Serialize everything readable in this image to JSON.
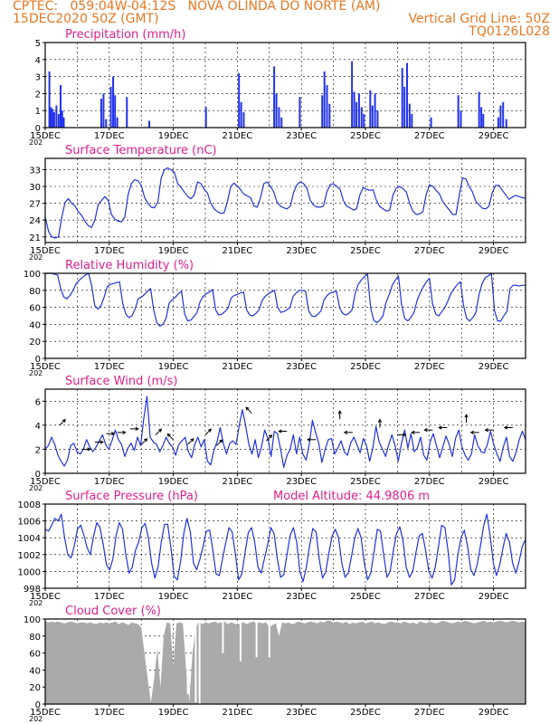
{
  "header": {
    "left_line1": "CPTEC:   059:04W-04:12S   NOVA OLINDA DO NORTE (AM)",
    "left_line2": "15DEC2020 50Z (GMT)",
    "right_line2": "Vertical Grid Line: 50Z",
    "right_line3": "TQ0126L028"
  },
  "colors": {
    "header": "#e87722",
    "title": "#e0208a",
    "series": "#2233dd",
    "bars": "#2233ee",
    "cloud": "#aaaaaa",
    "frame": "#000000"
  },
  "x_axis": {
    "ticks": [
      "15DEC",
      "17DEC",
      "19DEC",
      "21DEC",
      "23DEC",
      "25DEC",
      "27DEC",
      "29DEC"
    ],
    "year_fragment": "202"
  },
  "chart_data": [
    {
      "type": "bar",
      "title": "Precipitation (mm/h)",
      "ylim": [
        0,
        5
      ],
      "yticks": [
        0,
        1,
        2,
        3,
        4,
        5
      ],
      "x_days_start": 0,
      "x_days_end": 15,
      "bars": [
        [
          0.13,
          3.3
        ],
        [
          0.18,
          1.2
        ],
        [
          0.23,
          1.1
        ],
        [
          0.28,
          0.9
        ],
        [
          0.35,
          1.3
        ],
        [
          0.42,
          0.8
        ],
        [
          0.48,
          2.5
        ],
        [
          0.53,
          1.0
        ],
        [
          0.58,
          0.6
        ],
        [
          1.75,
          1.7
        ],
        [
          1.82,
          2.0
        ],
        [
          1.9,
          0.5
        ],
        [
          2.05,
          2.4
        ],
        [
          2.12,
          3.0
        ],
        [
          2.18,
          1.9
        ],
        [
          2.25,
          0.6
        ],
        [
          2.55,
          1.8
        ],
        [
          3.25,
          0.4
        ],
        [
          5.02,
          1.2
        ],
        [
          6.05,
          3.2
        ],
        [
          6.12,
          1.5
        ],
        [
          6.2,
          0.9
        ],
        [
          7.15,
          3.6
        ],
        [
          7.22,
          2.0
        ],
        [
          7.3,
          1.2
        ],
        [
          7.38,
          0.6
        ],
        [
          7.95,
          1.8
        ],
        [
          8.65,
          1.9
        ],
        [
          8.72,
          3.3
        ],
        [
          8.8,
          2.5
        ],
        [
          8.88,
          1.4
        ],
        [
          9.58,
          3.9
        ],
        [
          9.65,
          2.1
        ],
        [
          9.72,
          1.5
        ],
        [
          9.8,
          2.0
        ],
        [
          9.88,
          1.2
        ],
        [
          9.95,
          0.8
        ],
        [
          10.15,
          2.2
        ],
        [
          10.22,
          1.3
        ],
        [
          10.3,
          2.0
        ],
        [
          10.38,
          1.0
        ],
        [
          11.15,
          3.5
        ],
        [
          11.22,
          2.4
        ],
        [
          11.3,
          3.8
        ],
        [
          11.38,
          1.4
        ],
        [
          11.45,
          0.8
        ],
        [
          12.05,
          0.6
        ],
        [
          12.9,
          1.9
        ],
        [
          12.98,
          1.0
        ],
        [
          13.55,
          2.1
        ],
        [
          13.62,
          1.2
        ],
        [
          13.68,
          0.8
        ],
        [
          14.15,
          0.6
        ],
        [
          14.22,
          1.3
        ],
        [
          14.3,
          1.5
        ],
        [
          14.4,
          0.5
        ]
      ]
    },
    {
      "type": "line",
      "title": "Surface Temperature (nC)",
      "ylim": [
        20,
        35
      ],
      "yticks": [
        21,
        24,
        27,
        30,
        33
      ],
      "y": [
        24.5,
        22.0,
        21.0,
        20.8,
        21.0,
        24.5,
        27.2,
        27.8,
        27.0,
        26.5,
        25.5,
        24.8,
        23.8,
        23.0,
        22.7,
        24.0,
        26.8,
        27.5,
        28.2,
        27.5,
        25.0,
        24.2,
        23.8,
        23.7,
        24.5,
        28.5,
        30.5,
        31.2,
        31.0,
        30.2,
        28.0,
        27.0,
        26.3,
        26.2,
        27.2,
        31.5,
        33.0,
        33.3,
        33.0,
        32.5,
        30.5,
        29.8,
        29.0,
        28.2,
        27.8,
        28.5,
        30.8,
        30.5,
        29.5,
        28.8,
        27.0,
        26.0,
        25.5,
        25.2,
        25.3,
        27.3,
        30.0,
        30.6,
        30.1,
        29.4,
        28.6,
        28.3,
        28.0,
        26.5,
        26.3,
        28.0,
        30.5,
        30.8,
        30.0,
        29.0,
        27.2,
        26.5,
        26.2,
        26.0,
        26.5,
        29.0,
        30.3,
        30.8,
        30.5,
        29.7,
        27.5,
        26.7,
        26.3,
        26.3,
        26.5,
        29.0,
        30.3,
        30.5,
        30.0,
        29.5,
        27.5,
        26.5,
        26.2,
        25.8,
        26.0,
        28.5,
        29.8,
        29.5,
        29.3,
        29.4,
        27.5,
        26.4,
        26.0,
        25.6,
        25.8,
        28.5,
        29.7,
        30.0,
        29.6,
        29.0,
        27.0,
        25.6,
        25.0,
        25.1,
        25.5,
        28.5,
        30.3,
        30.0,
        29.3,
        28.7,
        27.3,
        26.5,
        25.8,
        25.0,
        25.0,
        28.5,
        31.5,
        31.3,
        30.0,
        29.0,
        27.3,
        26.7,
        26.1,
        26.0,
        26.5,
        29.0,
        30.2,
        30.2,
        29.3,
        28.5,
        27.7,
        28.1,
        28.4,
        28.2,
        28.0,
        27.9
      ]
    },
    {
      "type": "line",
      "title": "Relative Humidity (%)",
      "ylim": [
        0,
        100
      ],
      "yticks": [
        0,
        20,
        40,
        60,
        80,
        100
      ],
      "y": [
        100,
        100,
        100,
        99,
        98,
        82,
        72,
        70,
        74,
        80,
        88,
        92,
        95,
        98,
        100,
        85,
        62,
        58,
        62,
        72,
        84,
        87,
        88,
        89,
        90,
        65,
        52,
        48,
        50,
        58,
        70,
        72,
        75,
        79,
        82,
        57,
        42,
        38,
        40,
        47,
        65,
        69,
        72,
        76,
        79,
        52,
        44,
        45,
        49,
        54,
        67,
        73,
        76,
        78,
        81,
        57,
        51,
        52,
        55,
        59,
        71,
        74,
        75,
        77,
        78,
        57,
        51,
        50,
        53,
        57,
        68,
        73,
        76,
        78,
        80,
        60,
        54,
        55,
        57,
        60,
        73,
        77,
        80,
        80,
        79,
        56,
        50,
        49,
        52,
        56,
        69,
        74,
        77,
        78,
        79,
        59,
        53,
        51,
        53,
        57,
        76,
        87,
        92,
        96,
        99,
        60,
        45,
        42,
        45,
        50,
        66,
        75,
        86,
        92,
        97,
        63,
        47,
        44,
        48,
        54,
        68,
        77,
        84,
        90,
        94,
        64,
        52,
        50,
        55,
        60,
        68,
        77,
        82,
        87,
        90,
        62,
        47,
        44,
        48,
        54,
        75,
        88,
        95,
        97,
        100,
        56,
        44,
        44,
        50,
        55,
        82,
        86,
        86,
        85,
        86,
        86
      ]
    },
    {
      "type": "line",
      "title": "Surface Wind (m/s)",
      "ylim": [
        0,
        7
      ],
      "yticks": [
        0,
        2,
        4,
        6
      ],
      "y": [
        2.0,
        2.3,
        3.0,
        2.4,
        1.5,
        1.0,
        0.6,
        1.1,
        2.3,
        2.5,
        1.8,
        1.6,
        2.0,
        2.8,
        2.2,
        1.8,
        2.2,
        2.7,
        3.2,
        2.4,
        2.0,
        2.7,
        3.6,
        2.8,
        2.4,
        1.4,
        2.1,
        2.5,
        1.9,
        3.0,
        2.3,
        4.6,
        6.4,
        3.0,
        2.6,
        2.4,
        1.8,
        2.3,
        3.0,
        2.5,
        2.2,
        1.5,
        2.4,
        2.7,
        3.0,
        1.8,
        1.3,
        2.4,
        3.0,
        2.2,
        2.8,
        1.0,
        0.7,
        1.9,
        2.6,
        3.8,
        2.5,
        1.6,
        2.5,
        2.7,
        2.4,
        4.0,
        5.3,
        4.0,
        2.4,
        1.6,
        2.8,
        1.3,
        2.2,
        3.6,
        2.9,
        1.4,
        3.5,
        3.3,
        2.0,
        0.5,
        1.5,
        2.0,
        3.2,
        1.6,
        3.0,
        1.6,
        1.1,
        2.4,
        4.4,
        3.4,
        2.5,
        0.9,
        2.0,
        2.8,
        2.9,
        1.6,
        2.1,
        2.7,
        1.8,
        1.5,
        2.5,
        3.0,
        2.4,
        1.7,
        2.9,
        2.3,
        1.0,
        2.1,
        3.9,
        2.6,
        2.0,
        1.4,
        2.4,
        3.2,
        2.3,
        1.0,
        2.5,
        3.6,
        2.1,
        3.3,
        1.8,
        2.1,
        3.0,
        1.5,
        1.1,
        2.6,
        3.3,
        2.3,
        1.3,
        2.2,
        3.1,
        2.4,
        1.4,
        2.9,
        3.6,
        2.2,
        1.5,
        1.1,
        1.6,
        3.2,
        2.3,
        1.8,
        1.7,
        2.4,
        3.5,
        2.4,
        1.6,
        1.0,
        2.2,
        3.0,
        1.4,
        1.0,
        1.7,
        2.8,
        3.5,
        2.8
      ]
    },
    {
      "type": "line",
      "title": "Surface Pressure (hPa)",
      "ylim": [
        998,
        1008
      ],
      "yticks": [
        998,
        1000,
        1002,
        1004,
        1006,
        1008
      ],
      "y": [
        1005.0,
        1004.8,
        1005.5,
        1006.3,
        1006.0,
        1006.8,
        1004.0,
        1002.0,
        1001.6,
        1003.0,
        1005.0,
        1005.5,
        1004.3,
        1002.8,
        1002.0,
        1004.2,
        1005.8,
        1005.2,
        1003.2,
        1000.8,
        1000.2,
        1001.5,
        1004.3,
        1005.8,
        1005.0,
        1002.0,
        999.8,
        1000.5,
        1002.5,
        1003.5,
        1005.2,
        1005.7,
        1004.0,
        1001.0,
        999.2,
        1000.5,
        1003.5,
        1005.6,
        1005.6,
        1002.8,
        999.4,
        999.0,
        1001.2,
        1004.5,
        1006.3,
        1004.7,
        1001.0,
        1000.2,
        1001.5,
        1003.0,
        1004.8,
        1004.9,
        1002.5,
        999.7,
        999.5,
        1001.5,
        1003.4,
        1005.2,
        1004.7,
        1002.0,
        999.0,
        999.7,
        1002.3,
        1004.6,
        1005.2,
        1003.5,
        1000.5,
        999.8,
        1001.5,
        1003.2,
        1005.2,
        1004.5,
        1001.5,
        999.3,
        999.6,
        1002.0,
        1004.3,
        1005.2,
        1003.5,
        1000.0,
        998.8,
        1000.5,
        1003.0,
        1005.1,
        1004.7,
        1001.5,
        999.2,
        999.9,
        1002.2,
        1004.2,
        1005.0,
        1004.0,
        1001.0,
        999.3,
        999.8,
        1001.8,
        1003.9,
        1005.1,
        1004.0,
        1001.0,
        999.0,
        999.8,
        1002.3,
        1005.0,
        1004.8,
        1002.0,
        999.3,
        1000.0,
        1002.5,
        1004.5,
        1005.3,
        1003.6,
        1000.5,
        999.3,
        1000.0,
        1002.2,
        1004.2,
        1004.5,
        1002.5,
        1000.0,
        999.2,
        1000.5,
        1003.0,
        1005.5,
        1005.2,
        1002.3,
        998.4,
        999.0,
        1002.0,
        1004.0,
        1004.9,
        1003.0,
        1000.3,
        999.5,
        1000.8,
        1003.0,
        1005.4,
        1006.8,
        1004.3,
        1001.0,
        999.5,
        1000.8,
        1002.8,
        1004.5,
        1003.5,
        1001.0,
        999.8,
        1001.2,
        1003.0,
        1003.8
      ]
    },
    {
      "type": "area",
      "title": "Cloud Cover (%)",
      "ylim": [
        0,
        100
      ],
      "yticks": [
        0,
        20,
        40,
        60,
        80,
        100
      ],
      "y": [
        97,
        96,
        97,
        96,
        97,
        96,
        95,
        96,
        97,
        96,
        95,
        96,
        96,
        95,
        96,
        95,
        94,
        96,
        95,
        96,
        95,
        96,
        97,
        94,
        96,
        95,
        93,
        96,
        95,
        94,
        90,
        60,
        30,
        2,
        30,
        65,
        20,
        80,
        96,
        95,
        45,
        95,
        96,
        95,
        40,
        3,
        60,
        90,
        97,
        94,
        96,
        95,
        96,
        97,
        95,
        96,
        97,
        94,
        96,
        95,
        93,
        95,
        96,
        94,
        96,
        97,
        95,
        96,
        95,
        96,
        90,
        93,
        95,
        80,
        96,
        95,
        96,
        94,
        95,
        97,
        96,
        95,
        96,
        97,
        96,
        95,
        97,
        96,
        98,
        98,
        96,
        97,
        96,
        95,
        97,
        94,
        96,
        95,
        96,
        97,
        95,
        96,
        97,
        95,
        96,
        95,
        94,
        96,
        97,
        96,
        96,
        95,
        97,
        96,
        95,
        96,
        94,
        97,
        96,
        95,
        97,
        96,
        95,
        96,
        98,
        97,
        96,
        95,
        96,
        97,
        96,
        98,
        97,
        96,
        95,
        96,
        97,
        98,
        96,
        97,
        96,
        97,
        98,
        97,
        96,
        97,
        98,
        97,
        96,
        97,
        96
      ],
      "dips": [
        [
          4.45,
          12
        ],
        [
          4.7,
          2
        ],
        [
          4.82,
          0
        ],
        [
          5.55,
          60
        ],
        [
          6.1,
          50
        ],
        [
          6.6,
          55
        ],
        [
          7.0,
          55
        ]
      ]
    }
  ],
  "extra": {
    "model_altitude": "Model Altitude: 44.9806 m"
  }
}
